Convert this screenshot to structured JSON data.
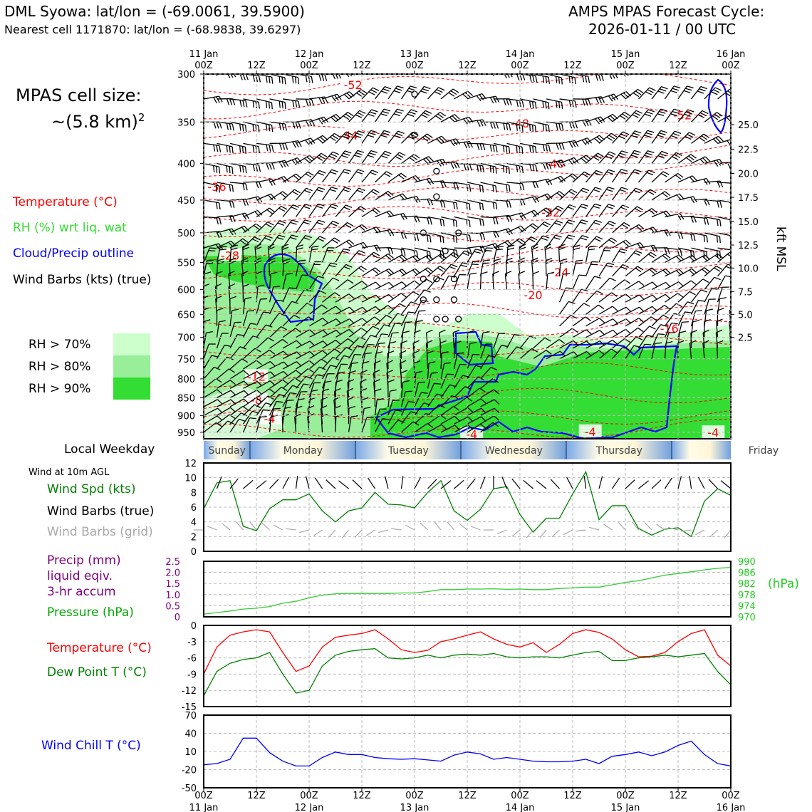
{
  "header": {
    "station": "DML Syowa: lat/lon = (-69.0061, 39.5900)",
    "nearest": "Nearest cell 1171870: lat/lon = (-68.9838, 39.6297)",
    "cycle_line1": "AMPS MPAS Forecast Cycle:",
    "cycle_line2": "2026-01-11 / 00 UTC"
  },
  "legend": {
    "cell_size_line1": "MPAS cell size:",
    "cell_size_line2": "~(5.8 km)",
    "cell_size_sup": "2",
    "temperature": "Temperature (°C)",
    "rh": "RH (%) wrt liq. wat",
    "cloud": "Cloud/Precip outline",
    "wind": "Wind Barbs (kts) (true)",
    "rh70": "RH > 70%",
    "rh80": "RH > 80%",
    "rh90": "RH > 90%",
    "local_weekday": "Local Weekday",
    "wind10m": "Wind at 10m AGL",
    "wind_spd": "Wind Spd (kts)",
    "wind_barbs_true": "Wind Barbs (true)",
    "wind_barbs_grid": "Wind Barbs (grid)",
    "precip1": "Precip (mm)",
    "precip2": "liquid eqiv.",
    "precip3": "3-hr accum",
    "pressure": "Pressure (hPa)",
    "hpa_unit": "(hPa)",
    "temp": "Temperature (°C)",
    "dewpoint": "Dew Point T (°C)",
    "windchill": "Wind Chill T (°C)",
    "kft": "kft MSL"
  },
  "colors": {
    "rh70": "#ccffcc",
    "rh80": "#99ee99",
    "rh90": "#33dd33",
    "temp": "#ff0000",
    "cloud": "#0000ff",
    "pressure": "#33cc33",
    "dewpoint": "#008000",
    "precip": "#800080"
  },
  "chart_data": [
    {
      "type": "heatmap",
      "title": "Time-height cross section",
      "time_ticks_top": [
        {
          "h": 0,
          "l1": "11 Jan",
          "l2": "00Z"
        },
        {
          "h": 12,
          "l1": "",
          "l2": "12Z"
        },
        {
          "h": 24,
          "l1": "12 Jan",
          "l2": "00Z"
        },
        {
          "h": 36,
          "l1": "",
          "l2": "12Z"
        },
        {
          "h": 48,
          "l1": "13 Jan",
          "l2": "00Z"
        },
        {
          "h": 60,
          "l1": "",
          "l2": "12Z"
        },
        {
          "h": 72,
          "l1": "14 Jan",
          "l2": "00Z"
        },
        {
          "h": 84,
          "l1": "",
          "l2": "12Z"
        },
        {
          "h": 96,
          "l1": "15 Jan",
          "l2": "00Z"
        },
        {
          "h": 108,
          "l1": "",
          "l2": "12Z"
        },
        {
          "h": 120,
          "l1": "16 Jan",
          "l2": "00Z"
        }
      ],
      "pressure_ticks": [
        "300",
        "350",
        "400",
        "450",
        "500",
        "550",
        "600",
        "650",
        "700",
        "750",
        "800",
        "850",
        "900",
        "950"
      ],
      "ylim": [
        300,
        970
      ],
      "kft_ticks": [
        {
          "p": 353,
          "label": "25.0"
        },
        {
          "p": 382,
          "label": "22.5"
        },
        {
          "p": 413,
          "label": "20.0"
        },
        {
          "p": 446,
          "label": "17.5"
        },
        {
          "p": 482,
          "label": "15.0"
        },
        {
          "p": 520,
          "label": "12.5"
        },
        {
          "p": 560,
          "label": "10.0"
        },
        {
          "p": 604,
          "label": "7.5"
        },
        {
          "p": 650,
          "label": "5.0"
        },
        {
          "p": 700,
          "label": "2.5"
        }
      ],
      "temp_labels": [
        {
          "h": 34,
          "p": 312,
          "label": "-52"
        },
        {
          "h": 33,
          "p": 367,
          "label": "-44"
        },
        {
          "h": 72,
          "p": 353,
          "label": "-48"
        },
        {
          "h": 109,
          "p": 344,
          "label": "-52"
        },
        {
          "h": 80,
          "p": 402,
          "label": "-40"
        },
        {
          "h": 79,
          "p": 470,
          "label": "-32"
        },
        {
          "h": 3,
          "p": 433,
          "label": "-36"
        },
        {
          "h": 6,
          "p": 540,
          "label": "-28"
        },
        {
          "h": 81,
          "p": 570,
          "label": "-24"
        },
        {
          "h": 75,
          "p": 613,
          "label": "-20"
        },
        {
          "h": 106,
          "p": 683,
          "label": "-16"
        },
        {
          "h": 12,
          "p": 797,
          "label": "-12"
        },
        {
          "h": 12,
          "p": 860,
          "label": "-8"
        },
        {
          "h": 15,
          "p": 913,
          "label": "-4"
        },
        {
          "h": 61,
          "p": 960,
          "label": "-4"
        },
        {
          "h": 88,
          "p": 952,
          "label": "-4"
        },
        {
          "h": 116,
          "p": 955,
          "label": "-4"
        }
      ],
      "weekdays": [
        "Sunday",
        "Monday",
        "Tuesday",
        "Wednesday",
        "Thursday",
        "Friday"
      ]
    },
    {
      "type": "line",
      "title": "Wind Spd (kts)",
      "x": [
        0,
        3,
        6,
        9,
        12,
        15,
        18,
        21,
        24,
        27,
        30,
        33,
        36,
        39,
        42,
        45,
        48,
        51,
        54,
        57,
        60,
        63,
        66,
        69,
        72,
        75,
        78,
        81,
        84,
        87,
        90,
        93,
        96,
        99,
        102,
        105,
        108,
        111,
        114,
        117,
        120
      ],
      "values": [
        5.8,
        9.3,
        9.6,
        3.4,
        2.8,
        5.8,
        7.0,
        7.0,
        7.8,
        5.5,
        4.0,
        5.5,
        5.9,
        8.0,
        6.4,
        6.3,
        5.9,
        8.0,
        9.6,
        5.5,
        4.2,
        5.7,
        8.5,
        8.8,
        5.0,
        2.6,
        4.5,
        4.5,
        7.8,
        10.8,
        4.3,
        6.2,
        6.2,
        3.1,
        2.2,
        3.0,
        3.2,
        2.0,
        6.8,
        8.5,
        7.6
      ],
      "ylim": [
        0,
        12
      ],
      "yticks": [
        "0",
        "2",
        "4",
        "6",
        "8",
        "10",
        "12"
      ]
    },
    {
      "type": "line",
      "title": "Pressure (hPa)",
      "x": [
        0,
        3,
        6,
        9,
        12,
        15,
        18,
        21,
        24,
        27,
        30,
        33,
        36,
        39,
        42,
        45,
        48,
        51,
        54,
        57,
        60,
        63,
        66,
        69,
        72,
        75,
        78,
        81,
        84,
        87,
        90,
        93,
        96,
        99,
        102,
        105,
        108,
        111,
        114,
        117,
        120
      ],
      "values": [
        971.0,
        971.5,
        972.1,
        972.8,
        973.1,
        973.7,
        974.9,
        975.6,
        976.9,
        977.8,
        978.3,
        978.4,
        978.4,
        978.4,
        978.4,
        978.6,
        978.6,
        979.1,
        979.8,
        979.8,
        980.0,
        980.0,
        980.1,
        979.9,
        980.0,
        979.8,
        979.8,
        980.2,
        980.4,
        980.7,
        980.7,
        981.5,
        982.4,
        983.0,
        984.0,
        985.0,
        985.6,
        986.2,
        986.9,
        987.5,
        987.8
      ],
      "ylim": [
        970,
        990
      ],
      "yticks_right": [
        "970",
        "974",
        "978",
        "982",
        "986",
        "990"
      ],
      "precip_ylim": [
        0,
        2.5
      ],
      "yticks_left": [
        "0",
        "0.5",
        "1.0",
        "1.5",
        "2.0",
        "2.5"
      ]
    },
    {
      "type": "line",
      "title": "Temperature / Dew Point (°C)",
      "x": [
        0,
        3,
        6,
        9,
        12,
        15,
        18,
        21,
        24,
        27,
        30,
        33,
        36,
        39,
        42,
        45,
        48,
        51,
        54,
        57,
        60,
        63,
        66,
        69,
        72,
        75,
        78,
        81,
        84,
        87,
        90,
        93,
        96,
        99,
        102,
        105,
        108,
        111,
        114,
        117,
        120
      ],
      "series": [
        {
          "name": "Temperature",
          "values": [
            -9.0,
            -4.0,
            -1.8,
            -1.2,
            -0.8,
            -1.2,
            -5.0,
            -8.5,
            -7.5,
            -4.0,
            -2.2,
            -1.8,
            -1.5,
            -0.8,
            -2.5,
            -4.5,
            -5.0,
            -4.6,
            -3.0,
            -2.5,
            -1.8,
            -1.2,
            -2.5,
            -3.5,
            -4.0,
            -3.2,
            -5.0,
            -3.5,
            -1.5,
            -0.8,
            -1.3,
            -2.5,
            -4.5,
            -5.8,
            -5.7,
            -5.0,
            -3.0,
            -1.5,
            -0.8,
            -5.5,
            -7.5
          ]
        },
        {
          "name": "Dew Point T",
          "values": [
            -13.0,
            -8.5,
            -7.0,
            -6.3,
            -6.0,
            -5.0,
            -9.0,
            -12.5,
            -12.0,
            -7.5,
            -5.5,
            -4.8,
            -4.5,
            -4.3,
            -6.0,
            -6.2,
            -6.0,
            -5.5,
            -6.0,
            -5.5,
            -5.3,
            -5.5,
            -5.2,
            -5.8,
            -6.0,
            -5.8,
            -5.8,
            -6.0,
            -5.5,
            -5.0,
            -4.8,
            -6.5,
            -6.5,
            -6.0,
            -5.8,
            -5.5,
            -5.8,
            -5.5,
            -5.2,
            -8.5,
            -11.0
          ]
        }
      ],
      "ylim": [
        -15,
        0
      ],
      "yticks": [
        "0",
        "-3",
        "-6",
        "-9",
        "-12",
        "-15"
      ]
    },
    {
      "type": "line",
      "title": "Wind Chill T (°C)",
      "x": [
        0,
        3,
        6,
        9,
        12,
        15,
        18,
        21,
        24,
        27,
        30,
        33,
        36,
        39,
        42,
        45,
        48,
        51,
        54,
        57,
        60,
        63,
        66,
        69,
        72,
        75,
        78,
        81,
        84,
        87,
        90,
        93,
        96,
        99,
        102,
        105,
        108,
        111,
        114,
        117,
        120
      ],
      "values": [
        -12,
        -10,
        -3,
        32,
        32,
        8,
        -6,
        -14,
        -14,
        0,
        9,
        5,
        5,
        0,
        -2,
        -3,
        -2,
        -4,
        -6,
        4,
        9,
        6,
        -3,
        0,
        -3,
        -6,
        -7,
        -7,
        -6,
        -3,
        -10,
        2,
        5,
        9,
        3,
        9,
        20,
        27,
        5,
        -10,
        -14
      ],
      "ylim": [
        -50,
        70
      ],
      "yticks": [
        "70",
        "40",
        "10",
        "-20",
        "-50"
      ]
    }
  ],
  "x_axis_bottom": [
    {
      "h": 0,
      "l1": "00Z",
      "l2": "11 Jan"
    },
    {
      "h": 12,
      "l1": "12Z",
      "l2": ""
    },
    {
      "h": 24,
      "l1": "00Z",
      "l2": "12 Jan"
    },
    {
      "h": 36,
      "l1": "12Z",
      "l2": ""
    },
    {
      "h": 48,
      "l1": "00Z",
      "l2": "13 Jan"
    },
    {
      "h": 60,
      "l1": "12Z",
      "l2": ""
    },
    {
      "h": 72,
      "l1": "00Z",
      "l2": "14 Jan"
    },
    {
      "h": 84,
      "l1": "12Z",
      "l2": ""
    },
    {
      "h": 96,
      "l1": "00Z",
      "l2": "15 Jan"
    },
    {
      "h": 108,
      "l1": "12Z",
      "l2": ""
    },
    {
      "h": 120,
      "l1": "00Z",
      "l2": "16 Jan"
    }
  ]
}
